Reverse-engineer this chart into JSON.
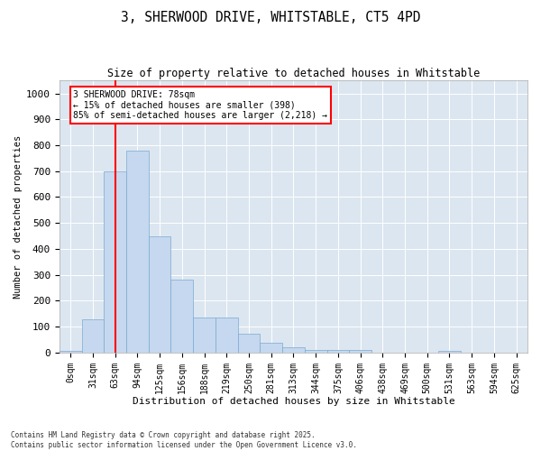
{
  "title": "3, SHERWOOD DRIVE, WHITSTABLE, CT5 4PD",
  "subtitle": "Size of property relative to detached houses in Whitstable",
  "xlabel": "Distribution of detached houses by size in Whitstable",
  "ylabel": "Number of detached properties",
  "bin_labels": [
    "0sqm",
    "31sqm",
    "63sqm",
    "94sqm",
    "125sqm",
    "156sqm",
    "188sqm",
    "219sqm",
    "250sqm",
    "281sqm",
    "313sqm",
    "344sqm",
    "375sqm",
    "406sqm",
    "438sqm",
    "469sqm",
    "500sqm",
    "531sqm",
    "563sqm",
    "594sqm",
    "625sqm"
  ],
  "bar_values": [
    5,
    130,
    700,
    780,
    450,
    280,
    135,
    135,
    72,
    38,
    22,
    10,
    10,
    10,
    0,
    0,
    0,
    8,
    0,
    0,
    0
  ],
  "bar_color": "#c5d8ef",
  "bar_edgecolor": "#7aaad0",
  "vline_x": 2,
  "vline_color": "red",
  "annotation_text": "3 SHERWOOD DRIVE: 78sqm\n← 15% of detached houses are smaller (398)\n85% of semi-detached houses are larger (2,218) →",
  "annotation_box_color": "white",
  "annotation_box_edgecolor": "red",
  "ylim": [
    0,
    1050
  ],
  "yticks": [
    0,
    100,
    200,
    300,
    400,
    500,
    600,
    700,
    800,
    900,
    1000
  ],
  "bg_color": "#dce6f0",
  "footer": "Contains HM Land Registry data © Crown copyright and database right 2025.\nContains public sector information licensed under the Open Government Licence v3.0.",
  "title_fontsize": 10.5,
  "subtitle_fontsize": 8.5,
  "xlabel_fontsize": 8,
  "ylabel_fontsize": 7.5,
  "tick_fontsize": 7,
  "annotation_fontsize": 7
}
